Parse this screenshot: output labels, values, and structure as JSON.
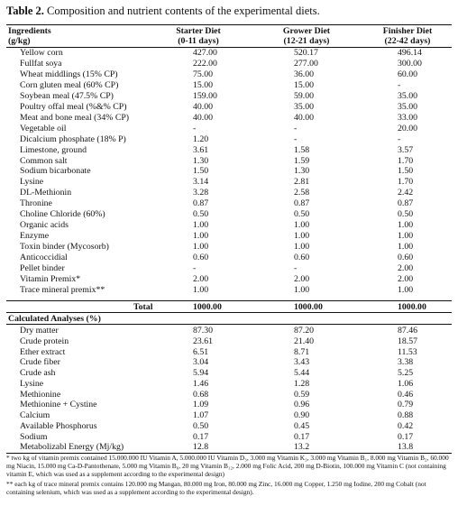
{
  "caption": {
    "label": "Table 2.",
    "text": " Composition and nutrient contents of the experimental diets."
  },
  "header": {
    "col0": [
      "Ingredients",
      "(g/kg)"
    ],
    "col1": [
      "Starter Diet",
      "(0-11 days)"
    ],
    "col2": [
      "Grower Diet",
      "(12-21 days)"
    ],
    "col3": [
      "Finisher Diet",
      "(22-42 days)"
    ]
  },
  "ingredients": [
    [
      "Yellow corn",
      "427.00",
      "520.17",
      "496.14"
    ],
    [
      "Fullfat soya",
      "222.00",
      "277.00",
      "300.00"
    ],
    [
      "Wheat middlings (15% CP)",
      "75.00",
      "36.00",
      "60.00"
    ],
    [
      "Corn gluten meal (60% CP)",
      "15.00",
      "15.00",
      "-"
    ],
    [
      "Soybean meal (47.5% CP)",
      "159.00",
      "59.00",
      "35.00"
    ],
    [
      "Poultry offal meal (%&% CP)",
      "40.00",
      "35.00",
      "35.00"
    ],
    [
      "Meat and bone meal (34% CP)",
      "40.00",
      "40.00",
      "33.00"
    ],
    [
      "Vegetable oil",
      "-",
      "-",
      "20.00"
    ],
    [
      "Dicalcium phosphate (18% P)",
      "1.20",
      "-",
      "-"
    ],
    [
      "Limestone, ground",
      "3.61",
      "1.58",
      "3.57"
    ],
    [
      "Common salt",
      "1.30",
      "1.59",
      "1.70"
    ],
    [
      "Sodium bicarbonate",
      "1.50",
      "1.30",
      "1.50"
    ],
    [
      "Lysine",
      "3.14",
      "2.81",
      "1.70"
    ],
    [
      "DL-Methionin",
      "3.28",
      "2.58",
      "2.42"
    ],
    [
      "Thronine",
      "0.87",
      "0.87",
      "0.87"
    ],
    [
      "Choline Chloride (60%)",
      "0.50",
      "0.50",
      "0.50"
    ],
    [
      "Organic acids",
      "1.00",
      "1.00",
      "1.00"
    ],
    [
      "Enzyme",
      "1.00",
      "1.00",
      "1.00"
    ],
    [
      "Toxin binder (Mycosorb)",
      "1.00",
      "1.00",
      "1.00"
    ],
    [
      "Anticoccidial",
      "0.60",
      "0.60",
      "0.60"
    ],
    [
      "Pellet binder",
      "-",
      "-",
      "2.00"
    ],
    [
      "Vitamin Premix*",
      "2.00",
      "2.00",
      "2.00"
    ],
    [
      "Trace mineral premix**",
      "1.00",
      "1.00",
      "1.00"
    ]
  ],
  "total": {
    "label": "Total",
    "values": [
      "1000.00",
      "1000.00",
      "1000.00"
    ]
  },
  "analyses_title": "Calculated Analyses (%)",
  "analyses": [
    [
      "Dry matter",
      "87.30",
      "87.20",
      "87.46"
    ],
    [
      "Crude protein",
      "23.61",
      "21.40",
      "18.57"
    ],
    [
      "Ether extract",
      "6.51",
      "8.71",
      "11.53"
    ],
    [
      "Crude fiber",
      "3.04",
      "3.43",
      "3.38"
    ],
    [
      "Crude ash",
      "5.94",
      "5.44",
      "5.25"
    ],
    [
      "Lysine",
      "1.46",
      "1.28",
      "1.06"
    ],
    [
      "Methionine",
      "0.68",
      "0.59",
      "0.46"
    ],
    [
      "Methionine + Cystine",
      "1.09",
      "0.96",
      "0.79"
    ],
    [
      "Calcium",
      "1.07",
      "0.90",
      "0.88"
    ],
    [
      "Available Phosphorus",
      "0.50",
      "0.45",
      "0.42"
    ],
    [
      "Sodium",
      "0.17",
      "0.17",
      "0.17"
    ],
    [
      "Metabolizabl Energy (Mj/kg)",
      "12.8",
      "13.2",
      "13.8"
    ]
  ],
  "footnotes": [
    "* two kg of vitamin premix contained 15.000.000 IU Vitamin A, 5.000.000 IU Vitamin D₃, 3.000 mg Vitamin K₃, 3.000 mg Vitamin B₁, 8.000 mg Vitamin B₂, 60.000 mg Niacin, 15.000 mg Ca-D-Pantothenate, 5.000 mg Vitamin B₆, 20 mg Vitamin B₁₂, 2.000 mg Folic Acid, 200 mg D-Biotin, 100.000 mg Vitamin C (not containing vitamin E, which was used as a supplement according to the experimental design)",
    "** each kg of trace mineral premix contains 120.000 mg Mangan, 80.000 mg Iron, 80.000 mg Zinc, 16.000 mg Copper, 1.250 mg Iodine, 200 mg Cobalt (not containing selenium, which was used as a supplement according to the experimental design)."
  ]
}
